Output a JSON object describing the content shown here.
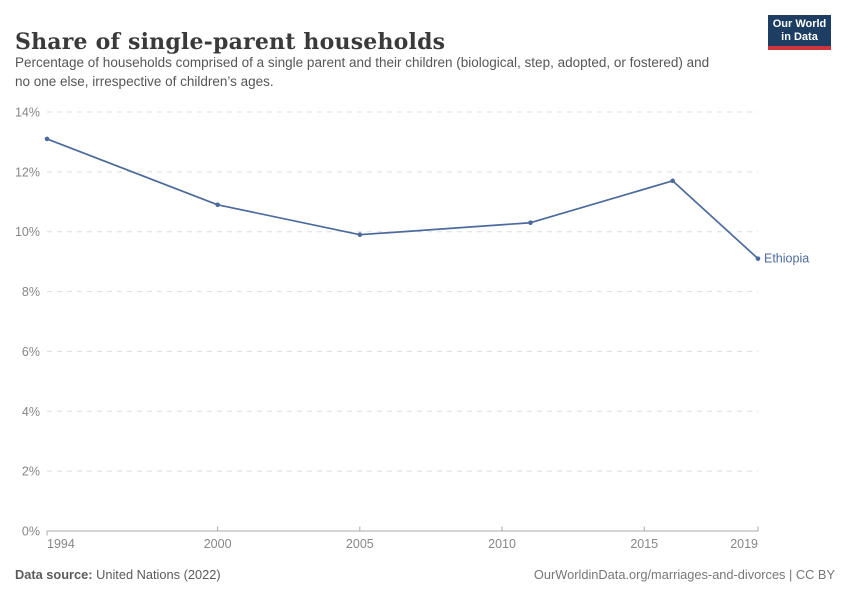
{
  "header": {
    "title": "Share of single-parent households",
    "subtitle": "Percentage of households comprised of a single parent and their children (biological, step, adopted, or fostered) and no one else, irrespective of children’s ages.",
    "logo": {
      "line1": "Our World",
      "line2": "in Data",
      "bg_color": "#1d3d63",
      "bar_color": "#d1353b"
    }
  },
  "chart_data": {
    "type": "line",
    "title": "Share of single-parent households",
    "xlabel": "",
    "ylabel": "",
    "xlim": [
      1994,
      2019
    ],
    "ylim": [
      0,
      14
    ],
    "grid": "horizontal-dashed",
    "legend": "end-of-line-label",
    "series": [
      {
        "name": "Ethiopia",
        "color": "#4c6a9c",
        "x": [
          1994,
          2000,
          2005,
          2011,
          2016,
          2019
        ],
        "values": [
          13.1,
          10.9,
          9.9,
          10.3,
          11.7,
          9.1
        ]
      }
    ],
    "yticks": [
      {
        "v": 0,
        "label": "0%"
      },
      {
        "v": 2,
        "label": "2%"
      },
      {
        "v": 4,
        "label": "4%"
      },
      {
        "v": 6,
        "label": "6%"
      },
      {
        "v": 8,
        "label": "8%"
      },
      {
        "v": 10,
        "label": "10%"
      },
      {
        "v": 12,
        "label": "12%"
      },
      {
        "v": 14,
        "label": "14%"
      }
    ],
    "xticks": [
      {
        "v": 1994,
        "label": "1994"
      },
      {
        "v": 2000,
        "label": "2000"
      },
      {
        "v": 2005,
        "label": "2005"
      },
      {
        "v": 2010,
        "label": "2010"
      },
      {
        "v": 2015,
        "label": "2015"
      },
      {
        "v": 2019,
        "label": "2019"
      }
    ]
  },
  "footer": {
    "source_label": "Data source:",
    "source_value": "United Nations (2022)",
    "credit": "OurWorldinData.org/marriages-and-divorces | CC BY"
  }
}
